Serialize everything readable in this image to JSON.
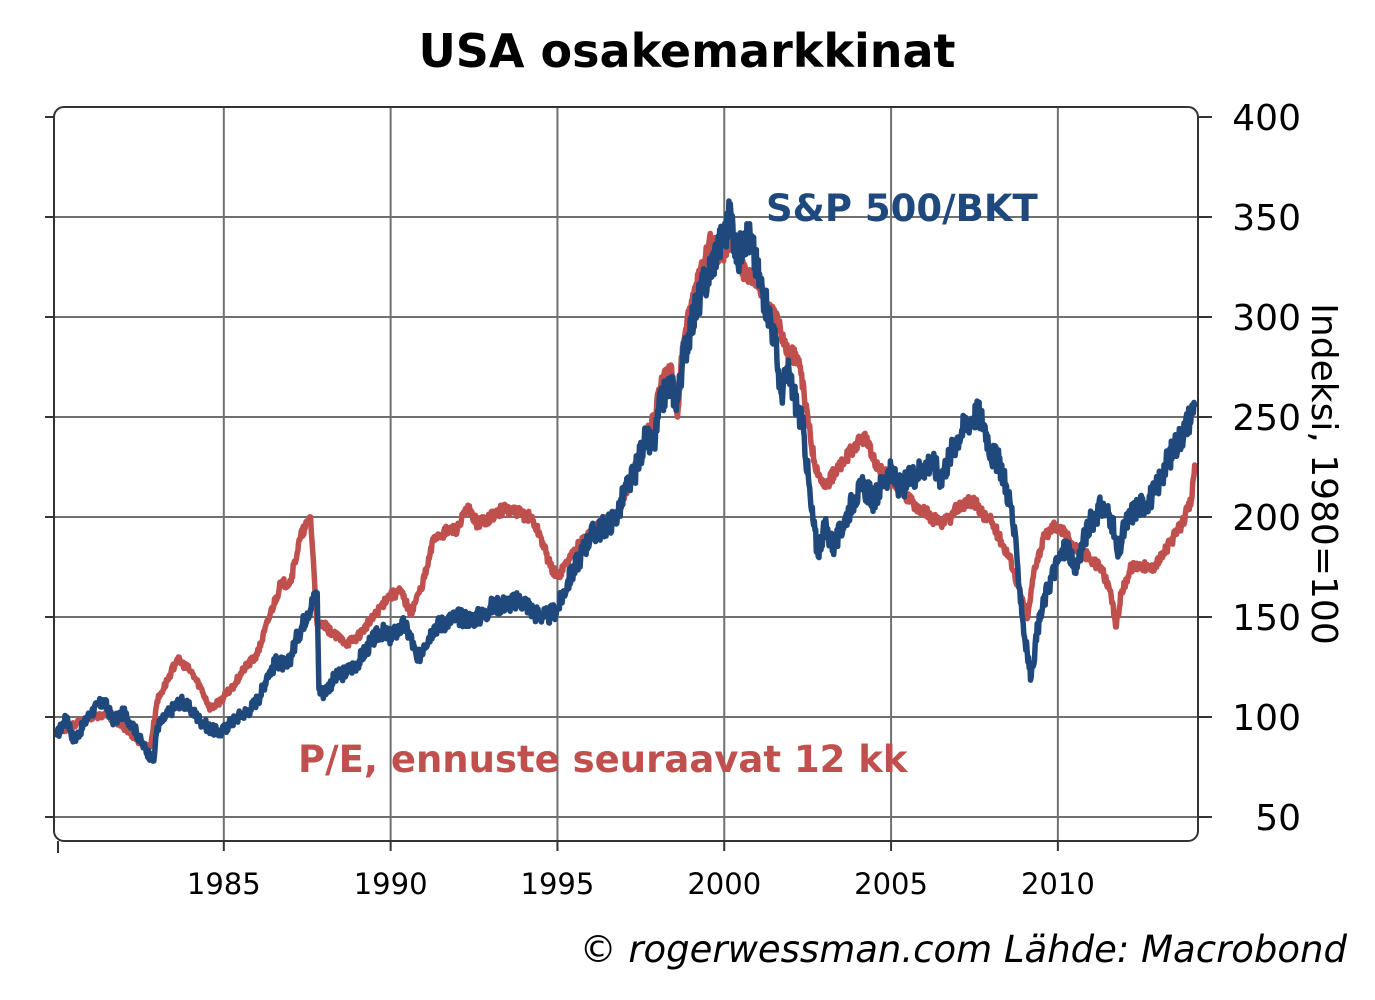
{
  "chart_data": {
    "type": "line",
    "title": "USA osakemarkkinat",
    "ylabel": "Indeksi, 1980=100",
    "xlabel": "",
    "xlim": [
      1980,
      2014.2
    ],
    "ylim": [
      38,
      405
    ],
    "y_ticks": [
      50,
      100,
      150,
      200,
      250,
      300,
      350,
      400
    ],
    "x_ticks": [
      1985,
      1990,
      1995,
      2000,
      2005,
      2010
    ],
    "grid": true,
    "source": "© rogerwessman.com Lähde: Macrobond",
    "colors": {
      "sp500": "#1f497d",
      "pe": "#c0504d"
    },
    "series": [
      {
        "name": "S&P 500/BKT",
        "color": "#1f497d",
        "points": [
          [
            1980.0,
            91
          ],
          [
            1980.3,
            100
          ],
          [
            1980.5,
            88
          ],
          [
            1980.8,
            96
          ],
          [
            1981.0,
            102
          ],
          [
            1981.4,
            108
          ],
          [
            1981.7,
            98
          ],
          [
            1982.0,
            102
          ],
          [
            1982.3,
            95
          ],
          [
            1982.6,
            85
          ],
          [
            1982.9,
            78
          ],
          [
            1983.0,
            95
          ],
          [
            1983.4,
            103
          ],
          [
            1983.7,
            108
          ],
          [
            1984.0,
            104
          ],
          [
            1984.3,
            98
          ],
          [
            1984.6,
            94
          ],
          [
            1984.9,
            92
          ],
          [
            1985.2,
            97
          ],
          [
            1985.5,
            101
          ],
          [
            1985.8,
            104
          ],
          [
            1986.1,
            111
          ],
          [
            1986.3,
            121
          ],
          [
            1986.6,
            128
          ],
          [
            1986.9,
            125
          ],
          [
            1987.2,
            140
          ],
          [
            1987.5,
            152
          ],
          [
            1987.8,
            162
          ],
          [
            1987.85,
            114
          ],
          [
            1988.0,
            112
          ],
          [
            1988.3,
            119
          ],
          [
            1988.7,
            123
          ],
          [
            1989.0,
            127
          ],
          [
            1989.4,
            137
          ],
          [
            1989.7,
            143
          ],
          [
            1990.0,
            140
          ],
          [
            1990.4,
            146
          ],
          [
            1990.6,
            140
          ],
          [
            1990.8,
            128
          ],
          [
            1991.0,
            136
          ],
          [
            1991.3,
            145
          ],
          [
            1991.7,
            148
          ],
          [
            1992.0,
            150
          ],
          [
            1992.4,
            149
          ],
          [
            1992.8,
            151
          ],
          [
            1993.0,
            155
          ],
          [
            1993.5,
            157
          ],
          [
            1994.0,
            158
          ],
          [
            1994.3,
            152
          ],
          [
            1994.7,
            150
          ],
          [
            1995.0,
            154
          ],
          [
            1995.3,
            167
          ],
          [
            1995.7,
            181
          ],
          [
            1996.0,
            191
          ],
          [
            1996.5,
            196
          ],
          [
            1996.8,
            201
          ],
          [
            1997.0,
            212
          ],
          [
            1997.3,
            221
          ],
          [
            1997.6,
            238
          ],
          [
            1997.9,
            236
          ],
          [
            1998.1,
            258
          ],
          [
            1998.4,
            266
          ],
          [
            1998.6,
            258
          ],
          [
            1998.75,
            278
          ],
          [
            1999.0,
            296
          ],
          [
            1999.3,
            312
          ],
          [
            1999.5,
            320
          ],
          [
            1999.8,
            335
          ],
          [
            2000.0,
            340
          ],
          [
            2000.2,
            352
          ],
          [
            2000.4,
            328
          ],
          [
            2000.6,
            342
          ],
          [
            2000.8,
            338
          ],
          [
            2001.0,
            322
          ],
          [
            2001.3,
            305
          ],
          [
            2001.5,
            290
          ],
          [
            2001.7,
            262
          ],
          [
            2001.9,
            272
          ],
          [
            2002.2,
            255
          ],
          [
            2002.4,
            240
          ],
          [
            2002.6,
            205
          ],
          [
            2002.8,
            182
          ],
          [
            2003.0,
            195
          ],
          [
            2003.3,
            185
          ],
          [
            2003.6,
            198
          ],
          [
            2003.9,
            210
          ],
          [
            2004.2,
            215
          ],
          [
            2004.5,
            208
          ],
          [
            2004.8,
            220
          ],
          [
            2005.0,
            222
          ],
          [
            2005.3,
            214
          ],
          [
            2005.6,
            220
          ],
          [
            2005.9,
            224
          ],
          [
            2006.2,
            228
          ],
          [
            2006.5,
            220
          ],
          [
            2006.8,
            232
          ],
          [
            2007.0,
            240
          ],
          [
            2007.3,
            248
          ],
          [
            2007.6,
            252
          ],
          [
            2007.8,
            246
          ],
          [
            2008.0,
            232
          ],
          [
            2008.3,
            225
          ],
          [
            2008.6,
            205
          ],
          [
            2008.8,
            175
          ],
          [
            2009.0,
            140
          ],
          [
            2009.2,
            120
          ],
          [
            2009.4,
            145
          ],
          [
            2009.7,
            165
          ],
          [
            2010.0,
            178
          ],
          [
            2010.3,
            186
          ],
          [
            2010.5,
            172
          ],
          [
            2010.8,
            190
          ],
          [
            2011.0,
            198
          ],
          [
            2011.3,
            205
          ],
          [
            2011.6,
            200
          ],
          [
            2011.8,
            180
          ],
          [
            2012.0,
            195
          ],
          [
            2012.3,
            204
          ],
          [
            2012.6,
            207
          ],
          [
            2012.9,
            212
          ],
          [
            2013.2,
            225
          ],
          [
            2013.5,
            235
          ],
          [
            2013.8,
            244
          ],
          [
            2014.0,
            252
          ],
          [
            2014.1,
            256
          ]
        ]
      },
      {
        "name": "P/E, ennuste seuraavat 12 kk",
        "color": "#c0504d",
        "points": [
          [
            1980.0,
            92
          ],
          [
            1980.5,
            96
          ],
          [
            1981.0,
            100
          ],
          [
            1981.5,
            101
          ],
          [
            1982.0,
            95
          ],
          [
            1982.5,
            87
          ],
          [
            1982.8,
            85
          ],
          [
            1983.0,
            108
          ],
          [
            1983.3,
            118
          ],
          [
            1983.6,
            129
          ],
          [
            1984.0,
            123
          ],
          [
            1984.3,
            115
          ],
          [
            1984.6,
            104
          ],
          [
            1984.9,
            108
          ],
          [
            1985.3,
            116
          ],
          [
            1985.6,
            124
          ],
          [
            1986.0,
            131
          ],
          [
            1986.4,
            152
          ],
          [
            1986.7,
            166
          ],
          [
            1987.0,
            168
          ],
          [
            1987.3,
            190
          ],
          [
            1987.6,
            200
          ],
          [
            1987.8,
            146
          ],
          [
            1988.0,
            146
          ],
          [
            1988.3,
            141
          ],
          [
            1988.7,
            137
          ],
          [
            1989.0,
            140
          ],
          [
            1989.5,
            150
          ],
          [
            1989.9,
            160
          ],
          [
            1990.3,
            163
          ],
          [
            1990.6,
            152
          ],
          [
            1990.9,
            164
          ],
          [
            1991.1,
            175
          ],
          [
            1991.3,
            190
          ],
          [
            1991.7,
            193
          ],
          [
            1992.0,
            194
          ],
          [
            1992.3,
            204
          ],
          [
            1992.6,
            197
          ],
          [
            1993.0,
            200
          ],
          [
            1993.4,
            204
          ],
          [
            1993.8,
            202
          ],
          [
            1994.2,
            200
          ],
          [
            1994.5,
            190
          ],
          [
            1994.8,
            175
          ],
          [
            1995.0,
            170
          ],
          [
            1995.3,
            178
          ],
          [
            1995.7,
            187
          ],
          [
            1996.0,
            193
          ],
          [
            1996.5,
            198
          ],
          [
            1996.8,
            202
          ],
          [
            1997.2,
            218
          ],
          [
            1997.5,
            235
          ],
          [
            1997.9,
            250
          ],
          [
            1998.1,
            266
          ],
          [
            1998.4,
            276
          ],
          [
            1998.6,
            250
          ],
          [
            1998.75,
            285
          ],
          [
            1999.0,
            305
          ],
          [
            1999.3,
            325
          ],
          [
            1999.6,
            338
          ],
          [
            1999.9,
            330
          ],
          [
            2000.2,
            340
          ],
          [
            2000.5,
            325
          ],
          [
            2000.8,
            318
          ],
          [
            2001.0,
            320
          ],
          [
            2001.3,
            305
          ],
          [
            2001.6,
            300
          ],
          [
            2001.9,
            282
          ],
          [
            2002.2,
            280
          ],
          [
            2002.4,
            260
          ],
          [
            2002.7,
            228
          ],
          [
            2003.0,
            215
          ],
          [
            2003.3,
            222
          ],
          [
            2003.6,
            228
          ],
          [
            2003.9,
            235
          ],
          [
            2004.2,
            240
          ],
          [
            2004.5,
            228
          ],
          [
            2004.8,
            222
          ],
          [
            2005.0,
            218
          ],
          [
            2005.3,
            214
          ],
          [
            2005.6,
            208
          ],
          [
            2005.9,
            204
          ],
          [
            2006.2,
            200
          ],
          [
            2006.5,
            196
          ],
          [
            2006.8,
            200
          ],
          [
            2007.0,
            205
          ],
          [
            2007.3,
            208
          ],
          [
            2007.6,
            206
          ],
          [
            2007.8,
            200
          ],
          [
            2008.0,
            198
          ],
          [
            2008.3,
            188
          ],
          [
            2008.6,
            178
          ],
          [
            2008.9,
            160
          ],
          [
            2009.1,
            150
          ],
          [
            2009.3,
            175
          ],
          [
            2009.6,
            190
          ],
          [
            2009.9,
            196
          ],
          [
            2010.2,
            192
          ],
          [
            2010.5,
            185
          ],
          [
            2010.8,
            182
          ],
          [
            2011.0,
            178
          ],
          [
            2011.3,
            175
          ],
          [
            2011.6,
            160
          ],
          [
            2011.75,
            145
          ],
          [
            2011.9,
            162
          ],
          [
            2012.2,
            175
          ],
          [
            2012.5,
            176
          ],
          [
            2012.8,
            174
          ],
          [
            2013.1,
            180
          ],
          [
            2013.4,
            188
          ],
          [
            2013.7,
            196
          ],
          [
            2014.0,
            208
          ],
          [
            2014.1,
            226
          ]
        ]
      }
    ]
  }
}
